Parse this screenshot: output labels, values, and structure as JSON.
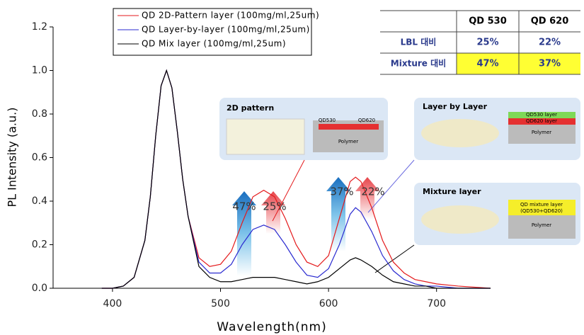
{
  "chart_data": {
    "type": "line",
    "x_label": "Wavelength(nm)",
    "y_label": "PL Intensity (a.u.)",
    "x": [
      390,
      400,
      410,
      420,
      430,
      435,
      440,
      445,
      450,
      455,
      460,
      465,
      470,
      480,
      490,
      500,
      510,
      520,
      530,
      540,
      550,
      560,
      570,
      580,
      590,
      600,
      610,
      620,
      625,
      630,
      640,
      650,
      660,
      670,
      680,
      690,
      700,
      720,
      750
    ],
    "series": [
      {
        "name": "QD 2D-Pattern layer (100mg/ml,25um)",
        "color": "#e41a1c",
        "values": [
          0,
          0,
          0.01,
          0.05,
          0.22,
          0.42,
          0.7,
          0.93,
          1.0,
          0.92,
          0.72,
          0.5,
          0.33,
          0.14,
          0.1,
          0.11,
          0.17,
          0.3,
          0.42,
          0.45,
          0.42,
          0.32,
          0.2,
          0.12,
          0.1,
          0.15,
          0.32,
          0.49,
          0.51,
          0.49,
          0.37,
          0.22,
          0.12,
          0.07,
          0.04,
          0.03,
          0.02,
          0.01,
          0
        ]
      },
      {
        "name": "QD Layer-by-layer (100mg/ml,25um)",
        "color": "#2b2bd0",
        "values": [
          0,
          0,
          0.01,
          0.05,
          0.22,
          0.42,
          0.7,
          0.93,
          1.0,
          0.92,
          0.72,
          0.5,
          0.33,
          0.12,
          0.07,
          0.07,
          0.11,
          0.2,
          0.27,
          0.29,
          0.27,
          0.2,
          0.12,
          0.06,
          0.05,
          0.09,
          0.2,
          0.34,
          0.37,
          0.35,
          0.26,
          0.15,
          0.08,
          0.04,
          0.02,
          0.01,
          0.01,
          0,
          0
        ]
      },
      {
        "name": "QD Mix layer (100mg/ml,25um)",
        "color": "#000000",
        "values": [
          0,
          0,
          0.01,
          0.05,
          0.22,
          0.42,
          0.7,
          0.93,
          1.0,
          0.92,
          0.72,
          0.5,
          0.33,
          0.1,
          0.05,
          0.03,
          0.03,
          0.04,
          0.05,
          0.05,
          0.05,
          0.04,
          0.03,
          0.02,
          0.03,
          0.05,
          0.09,
          0.13,
          0.14,
          0.13,
          0.1,
          0.06,
          0.03,
          0.02,
          0.01,
          0.01,
          0,
          0,
          0
        ]
      }
    ],
    "xlim": [
      345,
      750
    ],
    "ylim": [
      0,
      1.2
    ],
    "xticks": [
      400,
      500,
      600,
      700
    ],
    "yticks": [
      {
        "value": 0,
        "label": "0.0"
      },
      0.2,
      0.4,
      0.6,
      0.8,
      {
        "value": 1.0,
        "label": "1.0"
      },
      1.2
    ],
    "annotations": [
      "47%",
      "25%",
      "37%",
      "22%"
    ]
  },
  "table": {
    "columns": [
      "QD 530",
      "QD 620"
    ],
    "rows": [
      {
        "label": "LBL 대비",
        "cells": [
          "25%",
          "22%"
        ]
      },
      {
        "label": "Mixture 대비",
        "cells": [
          "47%",
          "37%"
        ]
      }
    ]
  },
  "insets": [
    {
      "title": "2D pattern",
      "labels": [
        "QD530",
        "QD620",
        "Polymer"
      ]
    },
    {
      "title": "Layer by Layer",
      "labels": [
        "QD530 layer",
        "QD620 layer",
        "Polymer"
      ]
    },
    {
      "title": "Mixture layer",
      "labels": [
        "QD mixture layer",
        "(QD530+QD620)",
        "Polymer"
      ]
    }
  ]
}
